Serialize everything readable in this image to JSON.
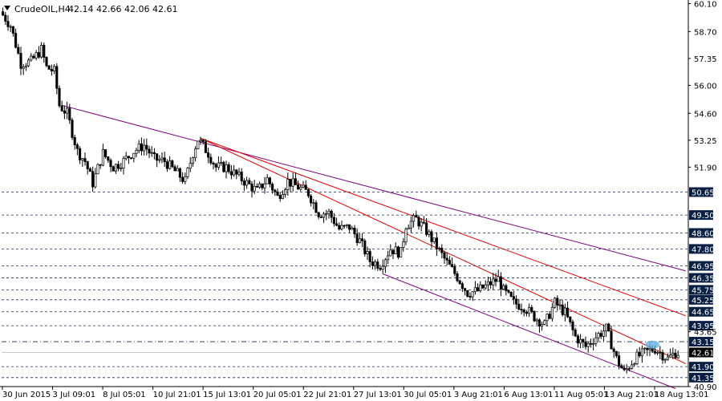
{
  "header": {
    "symbol": "CrudeOIL,H4",
    "ohlc": "42.14 42.66 42.06 42.61"
  },
  "colors": {
    "background": "#ffffff",
    "candle": "#000000",
    "level_line": "#1a2a4a",
    "level_label_bg": "#0a1f44",
    "price_label_bg": "#000000",
    "red_trendline": "#e00000",
    "purple_channel": "#800080",
    "highlight": "#5aaee0"
  },
  "chart_data": {
    "type": "candlestick",
    "price_axis": {
      "range": [
        40.9,
        60.2
      ],
      "ticks": [
        "60.10",
        "58.70",
        "57.35",
        "56.00",
        "54.60",
        "53.25",
        "51.90",
        "50.65",
        "49.50",
        "48.60",
        "47.80",
        "46.95",
        "46.35",
        "45.75",
        "45.25",
        "44.65",
        "43.95",
        "43.65",
        "43.15",
        "42.61",
        "41.90",
        "41.35",
        "40.90"
      ]
    },
    "time_axis": {
      "labels": [
        "30 Jun 2015",
        "3 Jul 09:01",
        "8 Jul 05:01",
        "10 Jul 21:01",
        "15 Jul 13:01",
        "20 Jul 05:01",
        "22 Jul 21:01",
        "27 Jul 13:01",
        "30 Jul 05:01",
        "3 Aug 21:01",
        "6 Aug 13:01",
        "11 Aug 05:01",
        "13 Aug 21:01",
        "18 Aug 13:01"
      ]
    },
    "horizontal_levels": [
      {
        "price": 50.65,
        "label": "50.65",
        "style": "dashed",
        "labeled": true
      },
      {
        "price": 49.5,
        "label": "49.50",
        "style": "dashed",
        "labeled": true
      },
      {
        "price": 48.6,
        "label": "48.60",
        "style": "dashed",
        "labeled": true
      },
      {
        "price": 47.8,
        "label": "47.80",
        "style": "dashed",
        "labeled": true
      },
      {
        "price": 46.95,
        "label": "46.95",
        "style": "dashed",
        "labeled": true
      },
      {
        "price": 46.35,
        "label": "46.35",
        "style": "dashed",
        "labeled": true
      },
      {
        "price": 45.75,
        "label": "45.75",
        "style": "dashed",
        "labeled": true
      },
      {
        "price": 45.25,
        "label": "45.25",
        "style": "dashed",
        "labeled": true
      },
      {
        "price": 44.65,
        "label": "44.65",
        "style": "dashed",
        "labeled": true
      },
      {
        "price": 43.95,
        "label": "43.95",
        "style": "dashed",
        "labeled": true
      },
      {
        "price": 43.15,
        "label": "43.15",
        "style": "dashdot",
        "labeled": true
      },
      {
        "price": 41.9,
        "label": "41.90",
        "style": "dashed",
        "labeled": true
      },
      {
        "price": 41.35,
        "label": "41.35",
        "style": "dashed",
        "labeled": true
      }
    ],
    "current_price": {
      "value": 42.61,
      "label": "42.61"
    },
    "bid_line": 42.61,
    "trendlines": [
      {
        "name": "purple-channel-upper",
        "color": "purple",
        "from": {
          "bar": 23,
          "price": 55.0
        },
        "to": {
          "bar": 266,
          "price": 46.7
        }
      },
      {
        "name": "purple-channel-lower",
        "color": "purple",
        "from": {
          "bar": 148,
          "price": 46.55
        },
        "to": {
          "bar": 262,
          "price": 40.8
        }
      },
      {
        "name": "red-trendline-1",
        "color": "red",
        "from": {
          "bar": 77,
          "price": 53.35
        },
        "to": {
          "bar": 266,
          "price": 44.45
        }
      },
      {
        "name": "red-trendline-2",
        "color": "red",
        "from": {
          "bar": 77,
          "price": 53.35
        },
        "to": {
          "bar": 266,
          "price": 42.05
        }
      }
    ],
    "highlight_marker": {
      "bar": 253,
      "price": 43.0
    },
    "price_path": [
      [
        0,
        59.7
      ],
      [
        4,
        59.0
      ],
      [
        8,
        57.1
      ],
      [
        12,
        57.2
      ],
      [
        16,
        57.8
      ],
      [
        18,
        56.9
      ],
      [
        21,
        56.7
      ],
      [
        23,
        55.0
      ],
      [
        26,
        54.6
      ],
      [
        30,
        52.7
      ],
      [
        33,
        52.2
      ],
      [
        36,
        51.1
      ],
      [
        40,
        52.6
      ],
      [
        44,
        51.9
      ],
      [
        48,
        52.2
      ],
      [
        52,
        52.7
      ],
      [
        56,
        53.0
      ],
      [
        60,
        52.3
      ],
      [
        64,
        52.2
      ],
      [
        68,
        51.7
      ],
      [
        72,
        51.2
      ],
      [
        75,
        52.6
      ],
      [
        77,
        53.3
      ],
      [
        81,
        52.6
      ],
      [
        84,
        51.9
      ],
      [
        88,
        51.9
      ],
      [
        92,
        51.5
      ],
      [
        96,
        51.1
      ],
      [
        100,
        50.7
      ],
      [
        104,
        51.3
      ],
      [
        108,
        50.4
      ],
      [
        112,
        51.2
      ],
      [
        116,
        50.9
      ],
      [
        120,
        50.6
      ],
      [
        124,
        49.6
      ],
      [
        128,
        49.6
      ],
      [
        132,
        48.8
      ],
      [
        136,
        48.9
      ],
      [
        140,
        48.2
      ],
      [
        144,
        47.2
      ],
      [
        148,
        47.0
      ],
      [
        152,
        47.8
      ],
      [
        156,
        47.6
      ],
      [
        158,
        49.0
      ],
      [
        162,
        49.3
      ],
      [
        166,
        48.7
      ],
      [
        170,
        47.9
      ],
      [
        174,
        47.1
      ],
      [
        178,
        46.4
      ],
      [
        182,
        45.6
      ],
      [
        186,
        45.7
      ],
      [
        190,
        46.0
      ],
      [
        194,
        46.3
      ],
      [
        196,
        45.7
      ],
      [
        200,
        45.1
      ],
      [
        204,
        44.9
      ],
      [
        208,
        44.4
      ],
      [
        212,
        44.0
      ],
      [
        216,
        45.1
      ],
      [
        220,
        44.6
      ],
      [
        224,
        43.4
      ],
      [
        228,
        42.9
      ],
      [
        232,
        43.4
      ],
      [
        236,
        43.8
      ],
      [
        240,
        42.3
      ],
      [
        243,
        41.6
      ],
      [
        247,
        42.3
      ],
      [
        251,
        42.6
      ],
      [
        255,
        42.8
      ],
      [
        258,
        42.5
      ],
      [
        260,
        42.3
      ],
      [
        263,
        42.6
      ]
    ]
  }
}
